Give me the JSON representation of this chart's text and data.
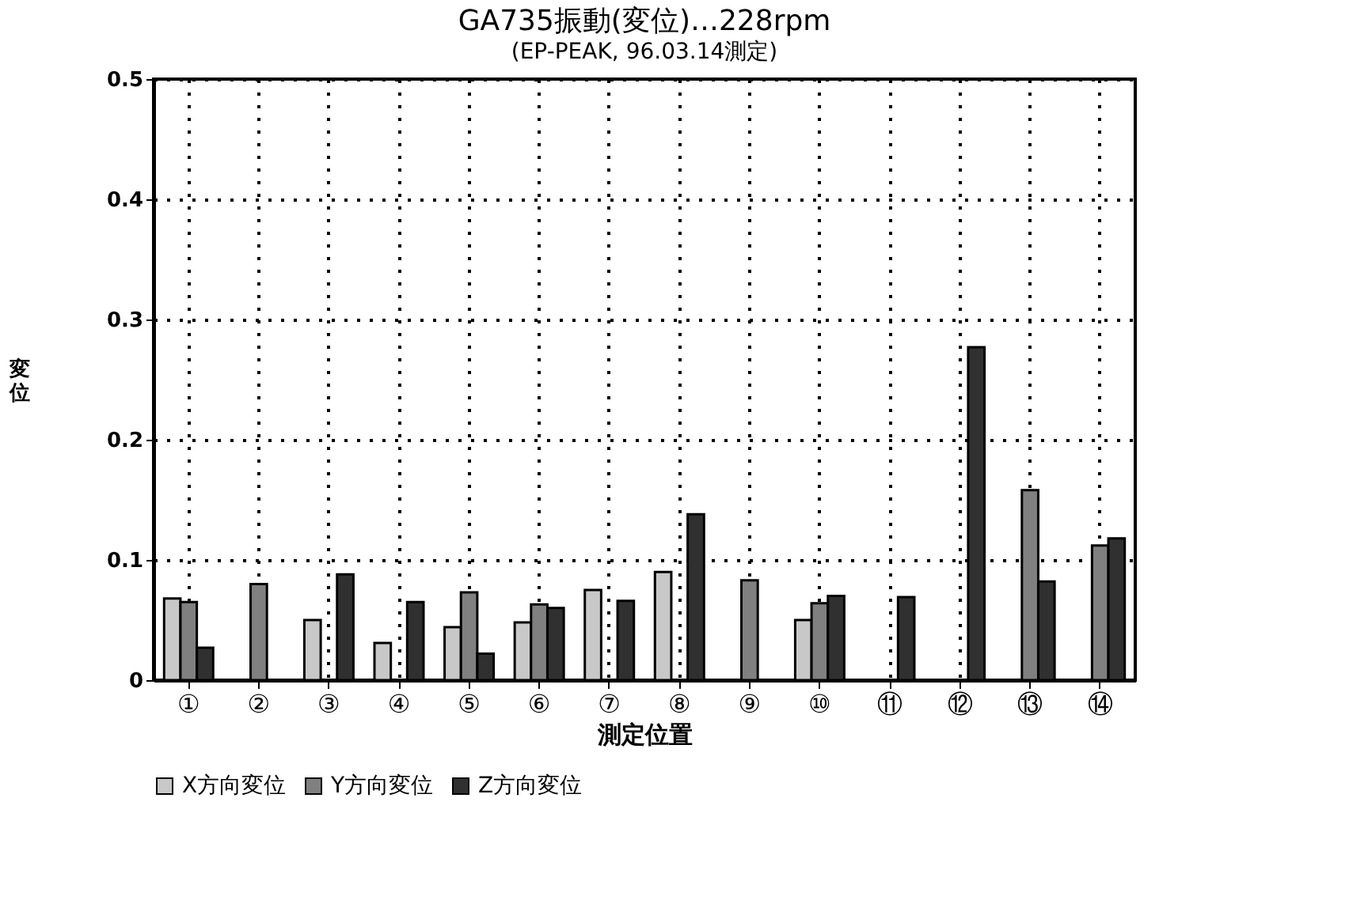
{
  "chart_data": {
    "type": "bar",
    "title": "GA735振動(変位)…228rpm",
    "subtitle": "(EP-PEAK, 96.03.14測定)",
    "xlabel": "測定位置",
    "ylabel": "変位",
    "categories": [
      "①",
      "②",
      "③",
      "④",
      "⑤",
      "⑥",
      "⑦",
      "⑧",
      "⑨",
      "⑩",
      "⑪",
      "⑫",
      "⑬",
      "⑭"
    ],
    "series": [
      {
        "name": "X方向変位",
        "color": "#c8c8c8",
        "values": [
          0.068,
          null,
          0.05,
          0.031,
          0.044,
          0.048,
          0.075,
          0.09,
          null,
          0.05,
          null,
          null,
          null,
          null
        ]
      },
      {
        "name": "Y方向変位",
        "color": "#808080",
        "values": [
          0.065,
          0.08,
          null,
          null,
          0.073,
          0.063,
          null,
          null,
          0.083,
          0.064,
          null,
          null,
          0.158,
          0.112
        ]
      },
      {
        "name": "Z方向変位",
        "color": "#303030",
        "values": [
          0.027,
          null,
          0.088,
          0.065,
          0.022,
          0.06,
          0.066,
          0.138,
          null,
          0.07,
          0.069,
          0.277,
          0.082,
          0.118
        ]
      }
    ],
    "ylim": [
      0,
      0.5
    ],
    "yticks": [
      0,
      0.1,
      0.2,
      0.3,
      0.4,
      0.5
    ],
    "grid": true,
    "legend": "bottom"
  }
}
